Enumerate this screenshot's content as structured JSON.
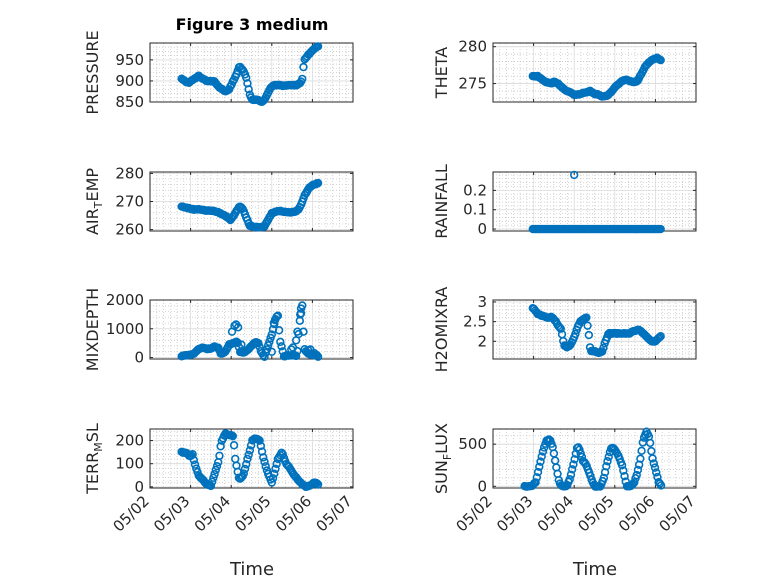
{
  "title": "Figure 3 medium",
  "xlabel": "Time",
  "x_ticks": [
    "05/02",
    "05/03",
    "05/04",
    "05/05",
    "05/06",
    "05/07"
  ],
  "marker_color": "#0072BD",
  "chart_data": [
    {
      "type": "scatter",
      "name": "PRESSURE",
      "ylabel": "PRESSURE",
      "ylabel_parts": [
        {
          "t": "PRESSURE"
        }
      ],
      "ylim": [
        850,
        990
      ],
      "yticks": [
        850,
        900,
        950
      ],
      "x_range": [
        "05/02",
        "05/07"
      ],
      "keys": [
        [
          0.78,
          905
        ],
        [
          0.85,
          900
        ],
        [
          0.95,
          895
        ],
        [
          1.0,
          900
        ],
        [
          1.1,
          905
        ],
        [
          1.2,
          912
        ],
        [
          1.3,
          905
        ],
        [
          1.4,
          900
        ],
        [
          1.5,
          900
        ],
        [
          1.6,
          898
        ],
        [
          1.65,
          890
        ],
        [
          1.7,
          885
        ],
        [
          1.78,
          880
        ],
        [
          1.85,
          875
        ],
        [
          1.95,
          880
        ],
        [
          2.05,
          900
        ],
        [
          2.15,
          920
        ],
        [
          2.2,
          935
        ],
        [
          2.3,
          925
        ],
        [
          2.38,
          905
        ],
        [
          2.45,
          870
        ],
        [
          2.52,
          855
        ],
        [
          2.65,
          855
        ],
        [
          2.75,
          850
        ],
        [
          2.82,
          855
        ],
        [
          2.9,
          870
        ],
        [
          2.98,
          885
        ],
        [
          3.05,
          890
        ],
        [
          3.2,
          890
        ],
        [
          3.3,
          888
        ],
        [
          3.45,
          890
        ],
        [
          3.6,
          890
        ],
        [
          3.7,
          895
        ],
        [
          3.75,
          905
        ],
        [
          3.8,
          950
        ],
        [
          3.9,
          962
        ],
        [
          4.0,
          972
        ],
        [
          4.1,
          980
        ],
        [
          4.15,
          982
        ]
      ]
    },
    {
      "type": "scatter",
      "name": "THETA",
      "ylabel": "THETA",
      "ylabel_parts": [
        {
          "t": "THETA"
        }
      ],
      "ylim": [
        272.5,
        280.5
      ],
      "yticks": [
        275,
        280
      ],
      "x_range": [
        "05/02",
        "05/07"
      ],
      "keys": [
        [
          0.98,
          276
        ],
        [
          1.1,
          276
        ],
        [
          1.2,
          275.6
        ],
        [
          1.3,
          275.2
        ],
        [
          1.45,
          275
        ],
        [
          1.5,
          275.3
        ],
        [
          1.6,
          275
        ],
        [
          1.7,
          274.5
        ],
        [
          1.8,
          274
        ],
        [
          1.9,
          273.8
        ],
        [
          2.0,
          273.5
        ],
        [
          2.1,
          273.5
        ],
        [
          2.2,
          273.7
        ],
        [
          2.3,
          273.8
        ],
        [
          2.4,
          274
        ],
        [
          2.5,
          273.6
        ],
        [
          2.6,
          273.5
        ],
        [
          2.7,
          273.2
        ],
        [
          2.8,
          273.3
        ],
        [
          2.9,
          273.8
        ],
        [
          3.0,
          274.5
        ],
        [
          3.1,
          275
        ],
        [
          3.2,
          275.4
        ],
        [
          3.3,
          275.5
        ],
        [
          3.45,
          275.2
        ],
        [
          3.55,
          275.3
        ],
        [
          3.65,
          276.3
        ],
        [
          3.75,
          277.3
        ],
        [
          3.85,
          277.9
        ],
        [
          3.95,
          278.3
        ],
        [
          4.05,
          278.5
        ],
        [
          4.15,
          278.1
        ]
      ]
    },
    {
      "type": "scatter",
      "name": "AIR_TEMP",
      "ylabel": "AIR_TEMP",
      "ylabel_parts": [
        {
          "t": "AIR"
        },
        {
          "t": "T",
          "sub": true
        },
        {
          "t": "EMP"
        }
      ],
      "ylim": [
        259.5,
        280.5
      ],
      "yticks": [
        260,
        270,
        280
      ],
      "x_range": [
        "05/02",
        "05/07"
      ],
      "keys": [
        [
          0.78,
          268.2
        ],
        [
          0.9,
          267.8
        ],
        [
          1.0,
          267.4
        ],
        [
          1.1,
          267.1
        ],
        [
          1.2,
          267.3
        ],
        [
          1.3,
          267
        ],
        [
          1.4,
          266.7
        ],
        [
          1.5,
          266.8
        ],
        [
          1.6,
          266.5
        ],
        [
          1.7,
          266
        ],
        [
          1.8,
          265.3
        ],
        [
          1.9,
          264.5
        ],
        [
          1.98,
          263.5
        ],
        [
          2.05,
          264.8
        ],
        [
          2.15,
          267
        ],
        [
          2.2,
          268.3
        ],
        [
          2.25,
          268
        ],
        [
          2.3,
          266.8
        ],
        [
          2.38,
          264
        ],
        [
          2.45,
          261.5
        ],
        [
          2.55,
          261
        ],
        [
          2.65,
          260.8
        ],
        [
          2.75,
          260.8
        ],
        [
          2.82,
          261.2
        ],
        [
          2.9,
          263.3
        ],
        [
          3.0,
          265.8
        ],
        [
          3.1,
          266.5
        ],
        [
          3.2,
          266.6
        ],
        [
          3.3,
          266.4
        ],
        [
          3.45,
          266.1
        ],
        [
          3.55,
          266.3
        ],
        [
          3.65,
          267
        ],
        [
          3.72,
          268.8
        ],
        [
          3.8,
          272
        ],
        [
          3.9,
          274.5
        ],
        [
          4.0,
          275.8
        ],
        [
          4.1,
          276.3
        ],
        [
          4.15,
          276.5
        ]
      ]
    },
    {
      "type": "scatter",
      "name": "RAINFALL",
      "ylabel": "RAINFALL",
      "ylabel_parts": [
        {
          "t": "RAINFALL"
        }
      ],
      "ylim": [
        -0.01,
        0.295
      ],
      "yticks": [
        0,
        0.1,
        0.2
      ],
      "x_range": [
        "05/02",
        "05/07"
      ],
      "keys": [
        [
          0.98,
          0
        ],
        [
          4.15,
          0
        ]
      ],
      "spikes": [
        [
          2.0,
          0.28
        ]
      ]
    },
    {
      "type": "scatter",
      "name": "MIXDEPTH",
      "ylabel": "MIXDEPTH",
      "ylabel_parts": [
        {
          "t": "MIXDEPTH"
        }
      ],
      "ylim": [
        -50,
        2000
      ],
      "yticks": [
        0,
        1000,
        2000
      ],
      "x_range": [
        "05/02",
        "05/07"
      ],
      "keys": [
        [
          0.78,
          50
        ],
        [
          0.9,
          80
        ],
        [
          1.0,
          100
        ],
        [
          1.1,
          150
        ],
        [
          1.2,
          300
        ],
        [
          1.3,
          350
        ],
        [
          1.4,
          300
        ],
        [
          1.5,
          320
        ],
        [
          1.6,
          380
        ],
        [
          1.68,
          330
        ],
        [
          1.75,
          120
        ],
        [
          1.85,
          200
        ],
        [
          1.95,
          450
        ],
        [
          2.05,
          500
        ],
        [
          2.15,
          560
        ],
        [
          2.22,
          200
        ],
        [
          2.3,
          160
        ],
        [
          2.4,
          250
        ],
        [
          2.5,
          400
        ],
        [
          2.6,
          550
        ],
        [
          2.68,
          500
        ],
        [
          2.72,
          250
        ],
        [
          2.82,
          30
        ],
        [
          3.0,
          800
        ],
        [
          3.1,
          1400
        ],
        [
          3.15,
          1450
        ],
        [
          3.2,
          600
        ],
        [
          3.3,
          50
        ],
        [
          3.45,
          80
        ],
        [
          3.55,
          90
        ],
        [
          3.62,
          30
        ],
        [
          3.68,
          1200
        ],
        [
          3.75,
          1800
        ],
        [
          3.8,
          300
        ],
        [
          3.88,
          150
        ],
        [
          3.98,
          100
        ],
        [
          4.1,
          80
        ],
        [
          4.15,
          30
        ]
      ],
      "extras": [
        [
          2.02,
          900
        ],
        [
          2.08,
          1100
        ],
        [
          2.12,
          1150
        ],
        [
          2.17,
          1050
        ],
        [
          2.25,
          450
        ],
        [
          3.0,
          200
        ],
        [
          3.05,
          1200
        ],
        [
          3.08,
          1300
        ],
        [
          3.48,
          280
        ],
        [
          3.52,
          350
        ],
        [
          3.6,
          600
        ],
        [
          3.63,
          900
        ],
        [
          3.7,
          1500
        ],
        [
          3.72,
          1700
        ],
        [
          3.9,
          250
        ],
        [
          3.95,
          280
        ],
        [
          4.05,
          150
        ]
      ]
    },
    {
      "type": "scatter",
      "name": "H2OMIXRA",
      "ylabel": "H2OMIXRA",
      "ylabel_parts": [
        {
          "t": "H2OMIXRA"
        }
      ],
      "ylim": [
        1.55,
        3.05
      ],
      "yticks": [
        2,
        2.5,
        3
      ],
      "x_range": [
        "05/02",
        "05/07"
      ],
      "keys": [
        [
          0.98,
          2.85
        ],
        [
          1.1,
          2.7
        ],
        [
          1.2,
          2.65
        ],
        [
          1.35,
          2.6
        ],
        [
          1.45,
          2.62
        ],
        [
          1.55,
          2.5
        ],
        [
          1.6,
          2.4
        ],
        [
          1.68,
          2.3
        ],
        [
          1.75,
          1.9
        ],
        [
          1.82,
          1.85
        ],
        [
          1.9,
          1.9
        ],
        [
          2.0,
          2.1
        ],
        [
          2.1,
          2.4
        ],
        [
          2.15,
          2.5
        ],
        [
          2.2,
          2.55
        ],
        [
          2.3,
          2.6
        ],
        [
          2.35,
          2.25
        ],
        [
          2.4,
          1.75
        ],
        [
          2.5,
          1.75
        ],
        [
          2.6,
          1.7
        ],
        [
          2.7,
          1.75
        ],
        [
          2.75,
          1.95
        ],
        [
          2.85,
          2.2
        ],
        [
          3.0,
          2.2
        ],
        [
          3.2,
          2.2
        ],
        [
          3.35,
          2.2
        ],
        [
          3.45,
          2.25
        ],
        [
          3.6,
          2.3
        ],
        [
          3.7,
          2.2
        ],
        [
          3.8,
          2.1
        ],
        [
          3.9,
          2.0
        ],
        [
          4.0,
          2.0
        ],
        [
          4.1,
          2.1
        ],
        [
          4.15,
          2.15
        ]
      ]
    },
    {
      "type": "scatter",
      "name": "TERR_MSL",
      "ylabel": "TERR_MSL",
      "ylabel_parts": [
        {
          "t": "TERR"
        },
        {
          "t": "M",
          "sub": true
        },
        {
          "t": "SL"
        }
      ],
      "ylim": [
        -5,
        250
      ],
      "yticks": [
        0,
        100,
        200
      ],
      "x_range": [
        "05/02",
        "05/07"
      ],
      "keys": [
        [
          0.78,
          150
        ],
        [
          0.9,
          145
        ],
        [
          1.0,
          130
        ],
        [
          1.05,
          140
        ],
        [
          1.1,
          100
        ],
        [
          1.2,
          50
        ],
        [
          1.3,
          30
        ],
        [
          1.4,
          10
        ],
        [
          1.5,
          5
        ],
        [
          1.6,
          60
        ],
        [
          1.7,
          120
        ],
        [
          1.75,
          190
        ],
        [
          1.85,
          230
        ],
        [
          1.95,
          225
        ],
        [
          2.05,
          220
        ],
        [
          2.1,
          120
        ],
        [
          2.2,
          30
        ],
        [
          2.3,
          50
        ],
        [
          2.4,
          120
        ],
        [
          2.45,
          150
        ],
        [
          2.52,
          200
        ],
        [
          2.6,
          210
        ],
        [
          2.7,
          200
        ],
        [
          2.8,
          120
        ],
        [
          2.9,
          60
        ],
        [
          3.0,
          20
        ],
        [
          3.05,
          50
        ],
        [
          3.15,
          120
        ],
        [
          3.25,
          150
        ],
        [
          3.35,
          100
        ],
        [
          3.45,
          80
        ],
        [
          3.55,
          50
        ],
        [
          3.65,
          30
        ],
        [
          3.75,
          10
        ],
        [
          3.85,
          0
        ],
        [
          3.95,
          5
        ],
        [
          4.05,
          20
        ],
        [
          4.15,
          10
        ]
      ]
    },
    {
      "type": "scatter",
      "name": "SUN_FLUX",
      "ylabel": "SUN_FLUX",
      "ylabel_parts": [
        {
          "t": "SUN"
        },
        {
          "t": "F",
          "sub": true
        },
        {
          "t": "LUX"
        }
      ],
      "ylim": [
        -20,
        680
      ],
      "yticks": [
        0,
        500
      ],
      "x_range": [
        "05/02",
        "05/07"
      ],
      "keys": [
        [
          0.78,
          0
        ],
        [
          0.95,
          0
        ],
        [
          1.05,
          50
        ],
        [
          1.15,
          250
        ],
        [
          1.25,
          450
        ],
        [
          1.32,
          540
        ],
        [
          1.4,
          560
        ],
        [
          1.48,
          450
        ],
        [
          1.55,
          250
        ],
        [
          1.63,
          50
        ],
        [
          1.7,
          0
        ],
        [
          1.82,
          0
        ],
        [
          1.9,
          100
        ],
        [
          2.0,
          300
        ],
        [
          2.08,
          470
        ],
        [
          2.12,
          450
        ],
        [
          2.22,
          300
        ],
        [
          2.3,
          250
        ],
        [
          2.38,
          150
        ],
        [
          2.45,
          50
        ],
        [
          2.52,
          0
        ],
        [
          2.65,
          0
        ],
        [
          2.73,
          100
        ],
        [
          2.82,
          300
        ],
        [
          2.9,
          440
        ],
        [
          2.95,
          460
        ],
        [
          3.02,
          420
        ],
        [
          3.1,
          350
        ],
        [
          3.18,
          250
        ],
        [
          3.25,
          100
        ],
        [
          3.3,
          0
        ],
        [
          3.4,
          0
        ],
        [
          3.48,
          50
        ],
        [
          3.55,
          150
        ],
        [
          3.62,
          300
        ],
        [
          3.7,
          550
        ],
        [
          3.78,
          650
        ],
        [
          3.85,
          580
        ],
        [
          3.92,
          350
        ],
        [
          4.0,
          200
        ],
        [
          4.08,
          50
        ],
        [
          4.15,
          0
        ]
      ]
    }
  ]
}
